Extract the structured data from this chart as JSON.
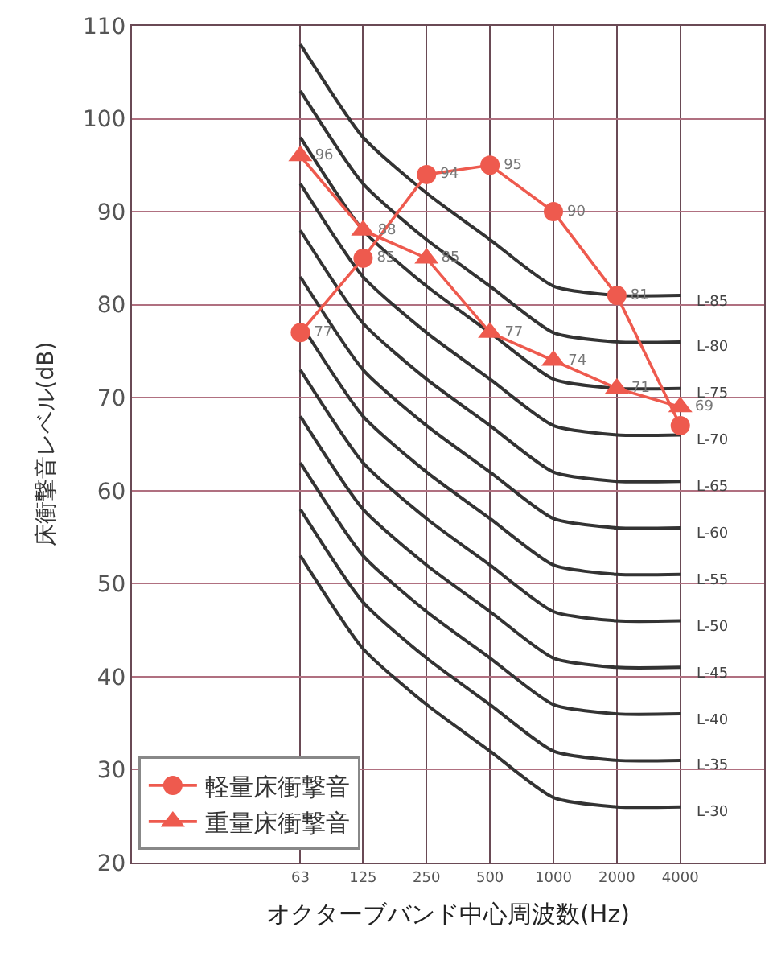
{
  "chart_data": {
    "type": "line",
    "xlabel": "オクターブバンド中心周波数(Hz)",
    "ylabel": "床衝撃音レベル(dB)",
    "x": [
      63,
      125,
      250,
      500,
      1000,
      2000,
      4000
    ],
    "log": "x",
    "xlim": [
      10,
      10000
    ],
    "xticks": [
      63,
      125,
      250,
      500,
      1000,
      2000,
      4000
    ],
    "ylim": [
      20,
      110
    ],
    "yticks": [
      20,
      30,
      40,
      50,
      60,
      70,
      80,
      90,
      100,
      110
    ],
    "grid": true,
    "legend": "bottom left",
    "series": [
      {
        "name": "軽量床衝撃音",
        "color": "#ee5a4e",
        "marker": "circle",
        "values": [
          77,
          85,
          94,
          95,
          90,
          81,
          67
        ],
        "value_labels": [
          "77",
          "85",
          "94",
          "95",
          "90",
          "81",
          null
        ]
      },
      {
        "name": "重量床衝撃音",
        "color": "#ee5a4e",
        "marker": "triangle",
        "values": [
          96,
          88,
          85,
          77,
          74,
          71,
          69
        ],
        "value_labels": [
          "96",
          "88",
          "85",
          "77",
          "74",
          "71",
          "69"
        ]
      },
      {
        "name": "L-85",
        "color": "#333333",
        "marker": "none",
        "values": [
          108,
          98,
          92,
          87,
          82,
          81,
          81
        ]
      },
      {
        "name": "L-80",
        "color": "#333333",
        "marker": "none",
        "values": [
          103,
          93,
          87,
          82,
          77,
          76,
          76
        ]
      },
      {
        "name": "L-75",
        "color": "#333333",
        "marker": "none",
        "values": [
          98,
          88,
          82,
          77,
          72,
          71,
          71
        ]
      },
      {
        "name": "L-70",
        "color": "#333333",
        "marker": "none",
        "values": [
          93,
          83,
          77,
          72,
          67,
          66,
          66
        ]
      },
      {
        "name": "L-65",
        "color": "#333333",
        "marker": "none",
        "values": [
          88,
          78,
          72,
          67,
          62,
          61,
          61
        ]
      },
      {
        "name": "L-60",
        "color": "#333333",
        "marker": "none",
        "values": [
          83,
          73,
          67,
          62,
          57,
          56,
          56
        ]
      },
      {
        "name": "L-55",
        "color": "#333333",
        "marker": "none",
        "values": [
          78,
          68,
          62,
          57,
          52,
          51,
          51
        ]
      },
      {
        "name": "L-50",
        "color": "#333333",
        "marker": "none",
        "values": [
          73,
          63,
          57,
          52,
          47,
          46,
          46
        ]
      },
      {
        "name": "L-45",
        "color": "#333333",
        "marker": "none",
        "values": [
          68,
          58,
          52,
          47,
          42,
          41,
          41
        ]
      },
      {
        "name": "L-40",
        "color": "#333333",
        "marker": "none",
        "values": [
          63,
          53,
          47,
          42,
          37,
          36,
          36
        ]
      },
      {
        "name": "L-35",
        "color": "#333333",
        "marker": "none",
        "values": [
          58,
          48,
          42,
          37,
          32,
          31,
          31
        ]
      },
      {
        "name": "L-30",
        "color": "#333333",
        "marker": "none",
        "values": [
          53,
          43,
          37,
          32,
          27,
          26,
          26
        ]
      }
    ]
  }
}
